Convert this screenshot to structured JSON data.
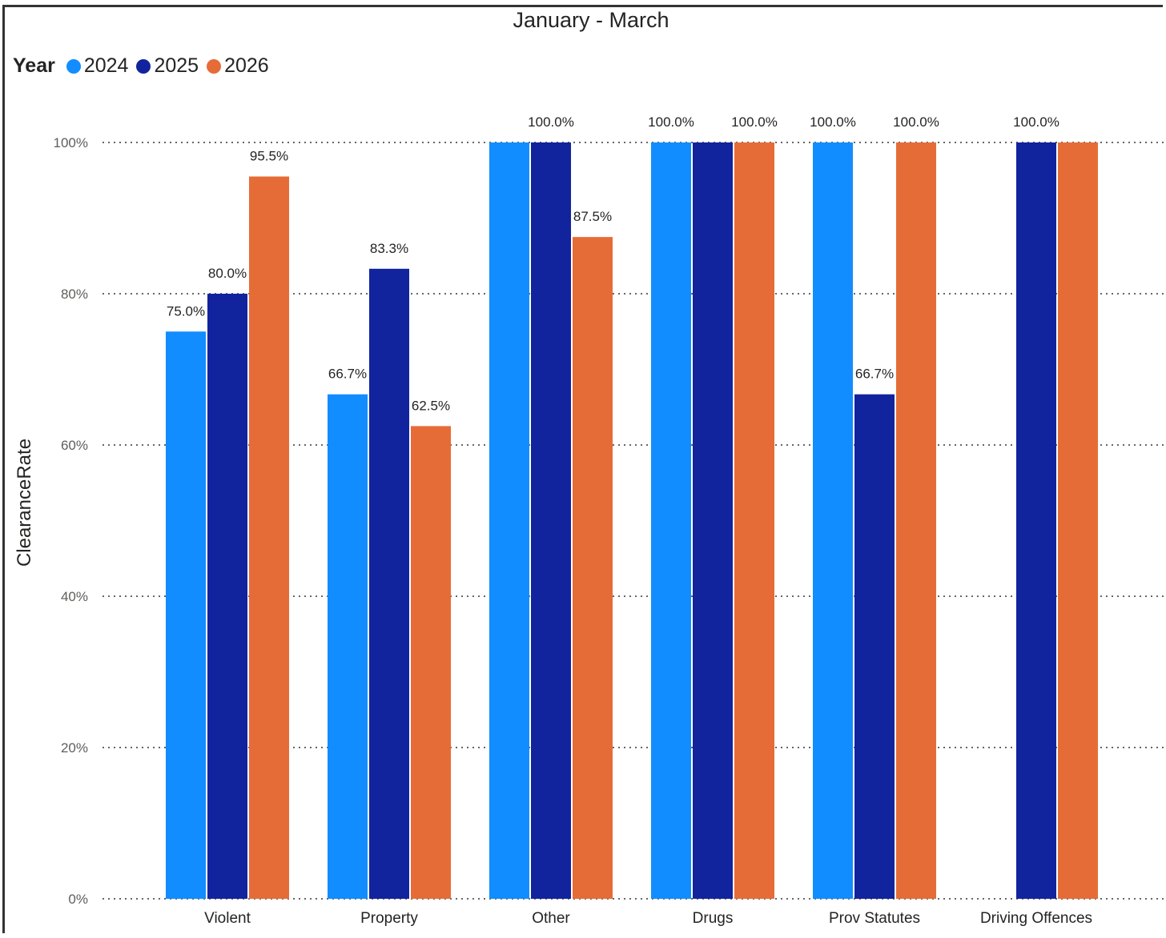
{
  "chart_data": {
    "type": "bar",
    "title": "January - March",
    "ylabel": "ClearanceRate",
    "xlabel": "",
    "legend_title": "Year",
    "legend_placement": "top-left",
    "grid": true,
    "ylim": [
      0,
      100
    ],
    "yticks": [
      "0%",
      "20%",
      "40%",
      "60%",
      "80%",
      "100%"
    ],
    "categories": [
      "Violent",
      "Property",
      "Other",
      "Drugs",
      "Prov Statutes",
      "Driving Offences"
    ],
    "series": [
      {
        "name": "2024",
        "color": "#118DFF",
        "values": [
          75.0,
          66.7,
          100.0,
          100.0,
          100.0,
          null
        ],
        "labels": [
          "75.0%",
          "66.7%",
          "",
          "100.0%",
          "100.0%",
          ""
        ]
      },
      {
        "name": "2025",
        "color": "#12239E",
        "values": [
          80.0,
          83.3,
          100.0,
          100.0,
          66.7,
          100.0
        ],
        "labels": [
          "80.0%",
          "83.3%",
          "100.0%",
          "",
          "66.7%",
          "100.0%"
        ]
      },
      {
        "name": "2026",
        "color": "#E66C37",
        "values": [
          95.5,
          62.5,
          87.5,
          100.0,
          100.0,
          100.0
        ],
        "labels": [
          "95.5%",
          "62.5%",
          "87.5%",
          "100.0%",
          "100.0%",
          ""
        ]
      }
    ]
  }
}
